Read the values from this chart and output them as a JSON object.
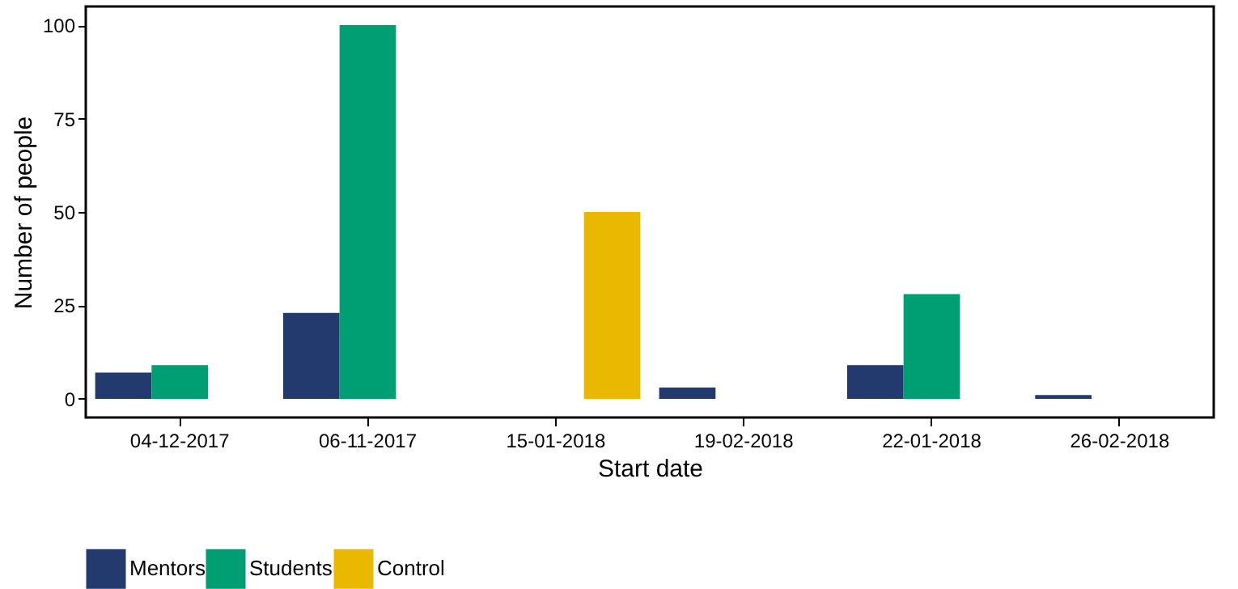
{
  "chart_data": {
    "type": "bar",
    "xlabel": "Start date",
    "ylabel": "Number of people",
    "categories": [
      "04-12-2017",
      "06-11-2017",
      "15-01-2018",
      "19-02-2018",
      "22-01-2018",
      "26-02-2018"
    ],
    "series": [
      {
        "name": "Mentors",
        "color": "#233a6e",
        "values": [
          7,
          23,
          0,
          3,
          9,
          1
        ]
      },
      {
        "name": "Students",
        "color": "#009e73",
        "values": [
          9,
          100,
          0,
          0,
          28,
          0
        ]
      },
      {
        "name": "Control",
        "color": "#ebb800",
        "values": [
          0,
          0,
          50,
          0,
          0,
          0
        ]
      }
    ],
    "ylim": [
      -5,
      105
    ],
    "yticks": [
      0,
      25,
      50,
      75,
      100
    ],
    "grid": false,
    "legend": "bottom"
  }
}
